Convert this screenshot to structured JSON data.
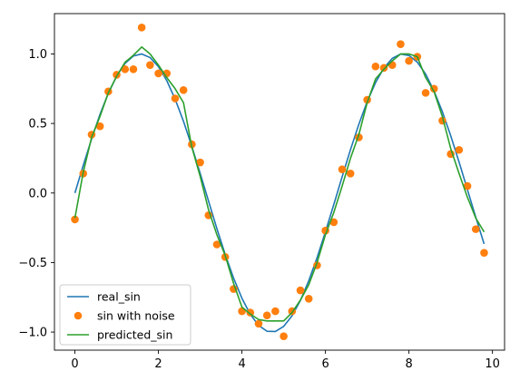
{
  "chart_data": {
    "type": "line",
    "title": "",
    "xlabel": "",
    "ylabel": "",
    "xlim": [
      -0.49,
      10.29
    ],
    "ylim": [
      -1.13,
      1.29
    ],
    "grid": false,
    "legend_position": "lower-left",
    "x_ticks": [
      {
        "value": 0,
        "label": "0"
      },
      {
        "value": 2,
        "label": "2"
      },
      {
        "value": 4,
        "label": "4"
      },
      {
        "value": 6,
        "label": "6"
      },
      {
        "value": 8,
        "label": "8"
      },
      {
        "value": 10,
        "label": "10"
      }
    ],
    "y_ticks": [
      {
        "value": -1.0,
        "label": "−1.0"
      },
      {
        "value": -0.5,
        "label": "−0.5"
      },
      {
        "value": 0.0,
        "label": "0.0"
      },
      {
        "value": 0.5,
        "label": "0.5"
      },
      {
        "value": 1.0,
        "label": "1.0"
      }
    ],
    "x": [
      0.0,
      0.2,
      0.4,
      0.6,
      0.8,
      1.0,
      1.2,
      1.4,
      1.6,
      1.8,
      2.0,
      2.2,
      2.4,
      2.6,
      2.8,
      3.0,
      3.2,
      3.4,
      3.6,
      3.8,
      4.0,
      4.2,
      4.4,
      4.6,
      4.8,
      5.0,
      5.2,
      5.4,
      5.6,
      5.8,
      6.0,
      6.2,
      6.4,
      6.6,
      6.8,
      7.0,
      7.2,
      7.4,
      7.6,
      7.8,
      8.0,
      8.2,
      8.4,
      8.6,
      8.8,
      9.0,
      9.2,
      9.4,
      9.6,
      9.8
    ],
    "series": [
      {
        "name": "real_sin",
        "kind": "line",
        "color": "#1f77b4",
        "values": [
          0.0,
          0.199,
          0.389,
          0.565,
          0.717,
          0.841,
          0.932,
          0.985,
          1.0,
          0.974,
          0.909,
          0.808,
          0.675,
          0.516,
          0.335,
          0.141,
          -0.058,
          -0.256,
          -0.443,
          -0.612,
          -0.757,
          -0.872,
          -0.952,
          -0.994,
          -0.996,
          -0.959,
          -0.883,
          -0.773,
          -0.631,
          -0.465,
          -0.279,
          -0.083,
          0.117,
          0.312,
          0.494,
          0.657,
          0.794,
          0.899,
          0.968,
          0.999,
          0.989,
          0.941,
          0.855,
          0.734,
          0.585,
          0.412,
          0.223,
          0.025,
          -0.174,
          -0.366
        ]
      },
      {
        "name": "sin with noise",
        "kind": "scatter",
        "color": "#ff7f0e",
        "values": [
          -0.19,
          0.14,
          0.42,
          0.48,
          0.73,
          0.85,
          0.89,
          0.89,
          1.19,
          0.92,
          0.86,
          0.86,
          0.68,
          0.74,
          0.35,
          0.22,
          -0.16,
          -0.37,
          -0.46,
          -0.69,
          -0.85,
          -0.86,
          -0.94,
          -0.88,
          -0.85,
          -1.03,
          -0.85,
          -0.7,
          -0.76,
          -0.52,
          -0.27,
          -0.21,
          0.17,
          0.14,
          0.4,
          0.67,
          0.91,
          0.9,
          0.92,
          1.07,
          0.95,
          0.98,
          0.72,
          0.75,
          0.52,
          0.28,
          0.31,
          0.05,
          -0.26,
          -0.43
        ]
      },
      {
        "name": "predicted_sin",
        "kind": "line",
        "color": "#2ca02c",
        "values": [
          -0.18,
          0.15,
          0.4,
          0.55,
          0.72,
          0.84,
          0.94,
          0.99,
          1.05,
          1.0,
          0.92,
          0.83,
          0.75,
          0.65,
          0.33,
          0.12,
          -0.12,
          -0.3,
          -0.45,
          -0.65,
          -0.82,
          -0.87,
          -0.91,
          -0.92,
          -0.92,
          -0.92,
          -0.86,
          -0.77,
          -0.66,
          -0.5,
          -0.3,
          -0.14,
          0.05,
          0.25,
          0.42,
          0.65,
          0.82,
          0.89,
          0.95,
          1.0,
          1.0,
          0.98,
          0.83,
          0.73,
          0.55,
          0.32,
          0.14,
          -0.03,
          -0.18,
          -0.28
        ]
      }
    ]
  }
}
